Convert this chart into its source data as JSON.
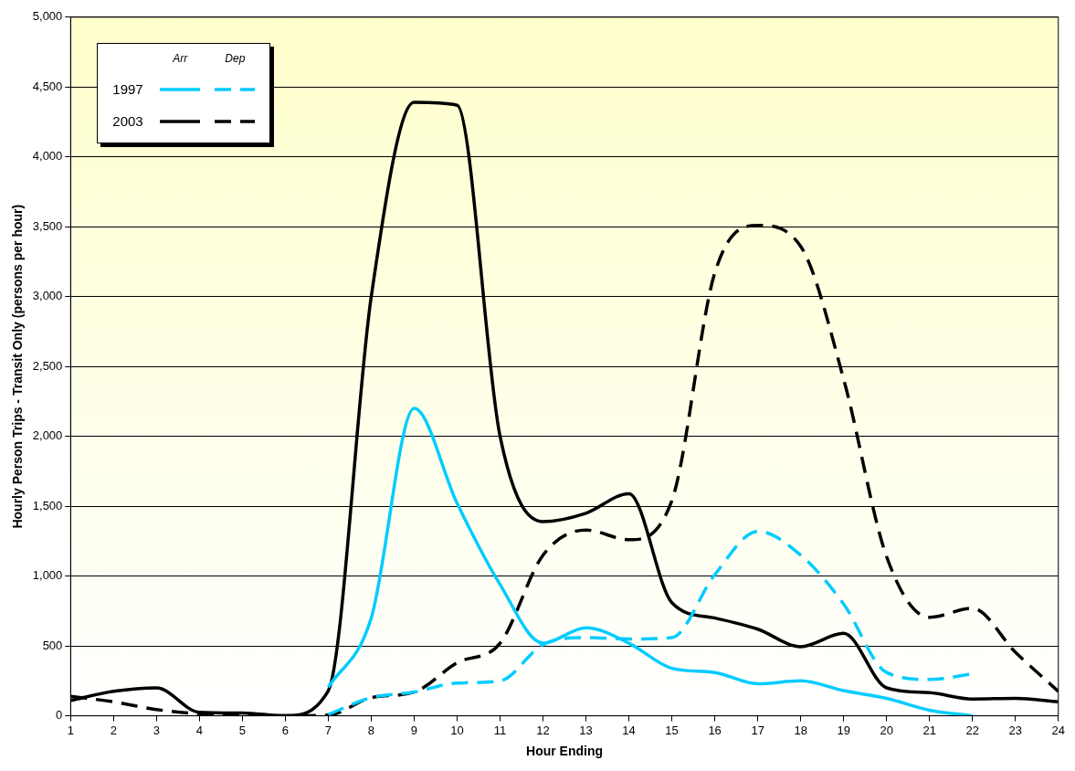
{
  "chart_data": {
    "type": "line",
    "xlabel": "Hour Ending",
    "ylabel": "Hourly Person Trips - Transit Only (persons per hour)",
    "xlim": [
      1,
      24
    ],
    "xticks": [
      1,
      2,
      3,
      4,
      5,
      6,
      7,
      8,
      9,
      10,
      11,
      12,
      13,
      14,
      15,
      16,
      17,
      18,
      19,
      20,
      21,
      22,
      23,
      24
    ],
    "ylim": [
      0,
      5000
    ],
    "yticks": [
      0,
      500,
      {
        "value": 1000,
        "label": "1,000"
      },
      {
        "value": 1500,
        "label": "1,500"
      },
      {
        "value": 2000,
        "label": "2,000"
      },
      {
        "value": 2500,
        "label": "2,500"
      },
      {
        "value": 3000,
        "label": "3,000"
      },
      {
        "value": 3500,
        "label": "3,500"
      },
      {
        "value": 4000,
        "label": "4,000"
      },
      {
        "value": 4500,
        "label": "4,500"
      },
      {
        "value": 5000,
        "label": "5,000"
      }
    ],
    "grid": "y",
    "legend": "top left",
    "marker": "none",
    "annotations": [
      "Arr",
      "Dep"
    ],
    "series": [
      {
        "name": "1997",
        "color": "#00ccff",
        "line_style": "solid",
        "x": [
          7,
          8,
          9,
          10,
          11,
          12,
          13,
          14,
          15,
          16,
          17,
          18,
          19,
          20,
          21,
          22
        ],
        "values": [
          205,
          700,
          2200,
          1520,
          940,
          520,
          630,
          520,
          340,
          310,
          230,
          250,
          180,
          125,
          40,
          0
        ]
      },
      {
        "color": "#00ccff",
        "line_style": "dashed",
        "x": [
          7,
          8,
          9,
          10,
          11,
          12,
          13,
          14,
          15,
          16,
          17,
          18,
          19,
          20,
          21,
          22
        ],
        "values": [
          10,
          130,
          170,
          235,
          250,
          510,
          560,
          550,
          560,
          1010,
          1320,
          1150,
          800,
          310,
          260,
          300
        ]
      },
      {
        "name": "2003",
        "color": "#000000",
        "line_style": "solid",
        "x": [
          1,
          2,
          3,
          4,
          5,
          6,
          7,
          8,
          9,
          10,
          11,
          12,
          13,
          14,
          15,
          16,
          17,
          18,
          19,
          20,
          21,
          22,
          23,
          24
        ],
        "values": [
          110,
          175,
          200,
          25,
          20,
          0,
          180,
          3000,
          4390,
          4370,
          2000,
          1390,
          1450,
          1590,
          810,
          700,
          620,
          495,
          590,
          200,
          165,
          120,
          125,
          100
        ]
      },
      {
        "color": "#000000",
        "line_style": "dashed",
        "x": [
          1,
          2,
          3,
          4,
          5,
          6,
          7,
          8,
          9,
          10,
          11,
          12,
          13,
          14,
          15,
          16,
          17,
          18,
          19,
          20,
          21,
          22,
          23,
          24
        ],
        "values": [
          140,
          100,
          45,
          15,
          10,
          0,
          5,
          130,
          170,
          380,
          520,
          1150,
          1330,
          1260,
          1540,
          3170,
          3510,
          3360,
          2410,
          1140,
          705,
          770,
          455,
          175
        ]
      }
    ]
  }
}
